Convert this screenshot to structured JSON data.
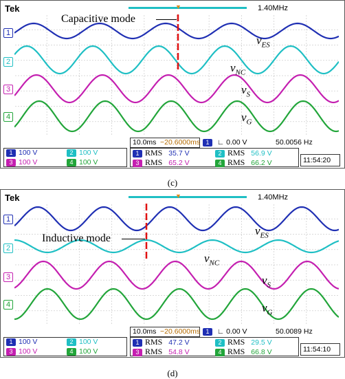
{
  "panels": [
    {
      "brand": "Tek",
      "freq_readout": "1.40MHz",
      "mode_label": "Capacitive mode",
      "channels": [
        "1",
        "2",
        "3",
        "4"
      ],
      "signals": [
        {
          "base": "v",
          "sub": "ES"
        },
        {
          "base": "v",
          "sub": "NC"
        },
        {
          "base": "v",
          "sub": "S"
        },
        {
          "base": "v",
          "sub": "G"
        }
      ],
      "timebase": "10.0ms",
      "trigger_pos": "−20.6000ms",
      "trigger_ch": "1",
      "trigger_level": "0.00 V",
      "trigger_freq": "50.0056 Hz",
      "scales": [
        {
          "ch": "1",
          "value": "100 V"
        },
        {
          "ch": "2",
          "value": "100 V"
        },
        {
          "ch": "3",
          "value": "100 V"
        },
        {
          "ch": "4",
          "value": "100 V"
        }
      ],
      "rms": [
        {
          "ch": "1",
          "label": "RMS",
          "value": "35.7 V"
        },
        {
          "ch": "2",
          "label": "RMS",
          "value": "56.9 V"
        },
        {
          "ch": "3",
          "label": "RMS",
          "value": "65.2 V"
        },
        {
          "ch": "4",
          "label": "RMS",
          "value": "66.2 V"
        }
      ],
      "clock": "11:54:20",
      "caption": "(c)"
    },
    {
      "brand": "Tek",
      "freq_readout": "1.40MHz",
      "mode_label": "Inductive mode",
      "channels": [
        "1",
        "2",
        "3",
        "4"
      ],
      "signals": [
        {
          "base": "v",
          "sub": "ES"
        },
        {
          "base": "v",
          "sub": "NC"
        },
        {
          "base": "v",
          "sub": "S"
        },
        {
          "base": "v",
          "sub": "G"
        }
      ],
      "timebase": "10.0ms",
      "trigger_pos": "−20.6000ms",
      "trigger_ch": "1",
      "trigger_level": "0.00 V",
      "trigger_freq": "50.0089 Hz",
      "scales": [
        {
          "ch": "1",
          "value": "100 V"
        },
        {
          "ch": "2",
          "value": "100 V"
        },
        {
          "ch": "3",
          "value": "100 V"
        },
        {
          "ch": "4",
          "value": "100 V"
        }
      ],
      "rms": [
        {
          "ch": "1",
          "label": "RMS",
          "value": "47.2 V"
        },
        {
          "ch": "2",
          "label": "RMS",
          "value": "29.5 V"
        },
        {
          "ch": "3",
          "label": "RMS",
          "value": "54.8 V"
        },
        {
          "ch": "4",
          "label": "RMS",
          "value": "66.8 V"
        }
      ],
      "clock": "11:54:10",
      "caption": "(d)"
    }
  ],
  "colors": {
    "ch1": "#1f2fb3",
    "ch2": "#1fbfc4",
    "ch3": "#c41fb0",
    "ch4": "#22a53a",
    "marker": "#e01010",
    "trigger": "#e08a1a",
    "grid": "#9a9a9a"
  }
}
